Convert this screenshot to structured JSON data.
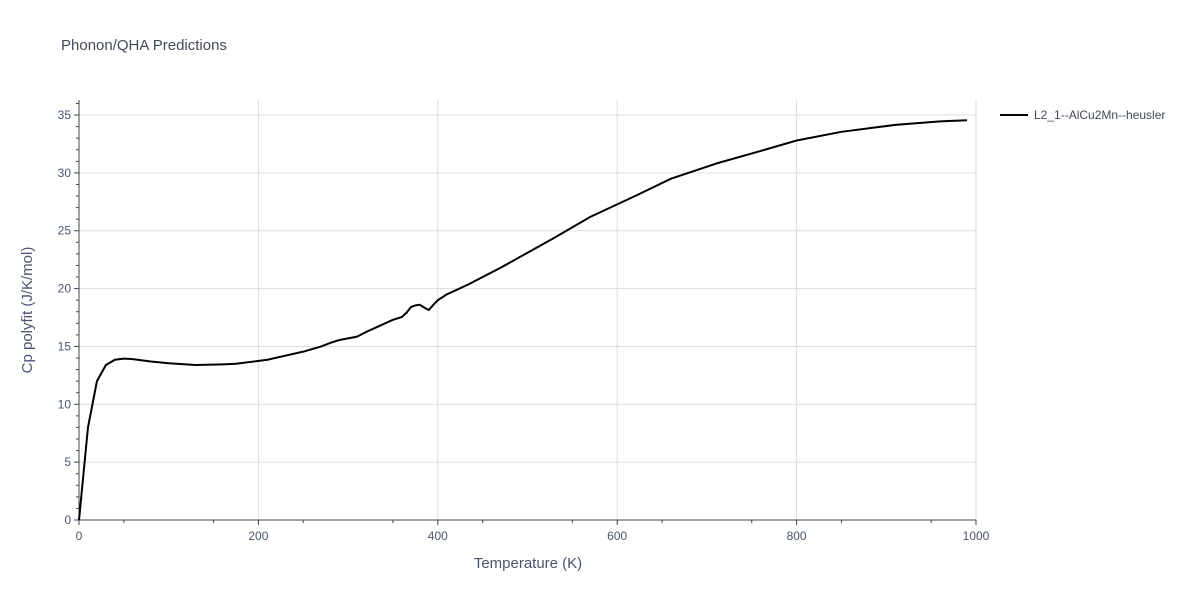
{
  "chart_data": {
    "type": "line",
    "title": "Phonon/QHA Predictions",
    "xlabel": "Temperature (K)",
    "ylabel": "Cp polyfit (J/K/mol)",
    "xlim": [
      0,
      1000
    ],
    "ylim": [
      0,
      36.3
    ],
    "xticks": [
      0,
      200,
      400,
      600,
      800,
      1000
    ],
    "yticks": [
      0,
      5,
      10,
      15,
      20,
      25,
      30,
      35
    ],
    "grid": true,
    "legend_position": "top-right",
    "series": [
      {
        "name": "L2_1--AlCu2Mn--heusler",
        "color": "#000000",
        "x": [
          0,
          10,
          20,
          30,
          40,
          50,
          60,
          80,
          100,
          130,
          160,
          175,
          190,
          210,
          230,
          250,
          270,
          280,
          290,
          300,
          310,
          320,
          330,
          340,
          350,
          360,
          365,
          370,
          375,
          380,
          385,
          390,
          395,
          400,
          410,
          420,
          435,
          450,
          470,
          500,
          530,
          570,
          620,
          660,
          710,
          760,
          800,
          850,
          910,
          960,
          990
        ],
        "y": [
          0,
          8,
          12,
          13.4,
          13.85,
          13.95,
          13.9,
          13.7,
          13.55,
          13.4,
          13.45,
          13.5,
          13.65,
          13.85,
          14.2,
          14.55,
          15.0,
          15.3,
          15.55,
          15.7,
          15.85,
          16.25,
          16.6,
          16.95,
          17.3,
          17.55,
          17.9,
          18.4,
          18.55,
          18.6,
          18.35,
          18.15,
          18.6,
          19.0,
          19.5,
          19.85,
          20.4,
          21.0,
          21.8,
          23.1,
          24.4,
          26.2,
          28.0,
          29.5,
          30.8,
          31.9,
          32.8,
          33.55,
          34.15,
          34.45,
          34.55
        ]
      }
    ]
  }
}
